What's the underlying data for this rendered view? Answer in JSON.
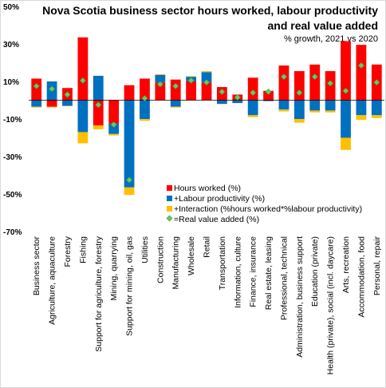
{
  "chart_data": {
    "type": "bar",
    "stacked": true,
    "title_line1": "Nova Scotia business sector hours worked, labour productivity",
    "title_line2": "and real value added",
    "subtitle": "% growth, 2021 vs 2020",
    "xlabel": "",
    "ylabel": "",
    "ylim": [
      -70,
      50
    ],
    "yticks": [
      50,
      30,
      10,
      -10,
      -30,
      -50,
      -70
    ],
    "ytick_labels": [
      "50%",
      "30%",
      "10%",
      "-10%",
      "-30%",
      "-50%",
      "-70%"
    ],
    "grid": false,
    "legend_position": "lower-right",
    "categories": [
      "Business sector",
      "Agriculture, aquaculture",
      "Forestry",
      "Fishing",
      "Support for agriculture, forestry",
      "Mining, quarrying",
      "Support for mining, oil, gas",
      "Utilities",
      "Construction",
      "Manufacturing",
      "Wholesale",
      "Retail",
      "Transportation",
      "Information, culture",
      "Finance, insurance",
      "Real estate, leasing",
      "Professional, technical",
      "Administration, business support",
      "Education (private)",
      "Health (private), social (incl. daycare)",
      "Arts, recreation",
      "Accommodation, food",
      "Personal, repair"
    ],
    "series": [
      {
        "name": "Hours worked (%)",
        "color": "#ff0000",
        "values": [
          11.5,
          -3.5,
          6.5,
          33.5,
          -13.5,
          -12.5,
          8.0,
          11.5,
          9.5,
          11.0,
          10.0,
          9.5,
          7.0,
          3.0,
          12.0,
          5.0,
          18.5,
          15.5,
          19.0,
          15.5,
          31.5,
          29.5,
          19.0
        ]
      },
      {
        "name": "+Labour productivity (%)",
        "color": "#0070c0",
        "values": [
          -3.5,
          10.0,
          -3.0,
          -17.0,
          13.0,
          -5.5,
          -46.5,
          -10.0,
          4.0,
          -3.5,
          2.5,
          5.5,
          -2.0,
          -1.5,
          -8.0,
          -0.5,
          -5.0,
          -10.0,
          -5.5,
          -5.5,
          -20.0,
          -8.0,
          -8.0
        ]
      },
      {
        "name": "+Interaction (%hours worked*%labour productivity)",
        "color": "#ffc000",
        "values": [
          -0.4,
          -0.4,
          -0.2,
          -6.0,
          -2.0,
          -0.8,
          -4.0,
          -1.0,
          0.4,
          -0.4,
          0.3,
          0.5,
          -0.1,
          -0.1,
          -1.0,
          0.0,
          -1.0,
          -2.0,
          -1.0,
          -1.0,
          -6.5,
          -2.5,
          -1.5
        ]
      },
      {
        "name": "=Real value added (%)",
        "color": "#66cc66",
        "type": "marker",
        "values": [
          7.5,
          6.0,
          3.0,
          10.5,
          -2.5,
          -13.0,
          -42.5,
          1.0,
          8.5,
          7.5,
          10.5,
          9.5,
          4.5,
          1.5,
          4.0,
          4.5,
          12.5,
          4.0,
          12.5,
          9.0,
          5.0,
          18.5,
          9.5
        ]
      }
    ]
  }
}
